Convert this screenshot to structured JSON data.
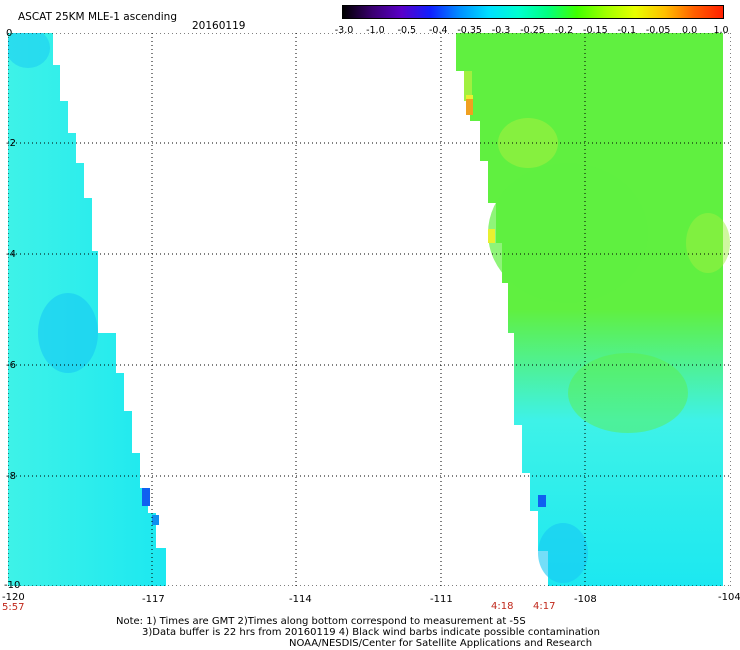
{
  "title": "ASCAT 25KM MLE-1 ascending",
  "date": "20160119",
  "legend": {
    "ticks": [
      "-3.0",
      "-1.0",
      "-0.5",
      "-0.4",
      "-0.35",
      "-0.3",
      "-0.25",
      "-0.2",
      "-0.15",
      "-0.1",
      "-0.05",
      "0.0",
      "1.0"
    ],
    "colors": [
      "#000000",
      "#3a0070",
      "#5a00c8",
      "#1020ff",
      "#0090ff",
      "#00e0ff",
      "#00ffd0",
      "#00ff80",
      "#40ff00",
      "#a0ff00",
      "#e8ff00",
      "#ffc000",
      "#ff6000",
      "#ff2000"
    ]
  },
  "axes": {
    "x_ticks": [
      "-120",
      "-117",
      "-114",
      "-111",
      "-108",
      "-104"
    ],
    "y_ticks": [
      "0",
      "-2",
      "-4",
      "-6",
      "-8",
      "-10"
    ],
    "gridlines": true,
    "x_range": [
      -120,
      -104
    ],
    "y_range": [
      -10,
      0
    ]
  },
  "times": {
    "left": "5:57",
    "center_a": "4:18",
    "center_b": "4:17"
  },
  "notes": {
    "line1": "Note: 1) Times are GMT 2)Times along bottom correspond to measurement at -5S",
    "line2": "3)Data buffer is 22 hrs from 20160119 4) Black wind barbs indicate possible contamination",
    "line3": "NOAA/NESDIS/Center for Satellite Applications and Research"
  },
  "colors": {
    "cyan_base": "#1ce8f0",
    "cyan_light": "#3ef2e8",
    "blue_patch": "#18c8f4",
    "green_main": "#60f040",
    "green_light": "#a0f040",
    "yellow_edge": "#e8f030",
    "orange_edge": "#f0a020",
    "blue_dot": "#1060f0",
    "grid": "#000000"
  }
}
